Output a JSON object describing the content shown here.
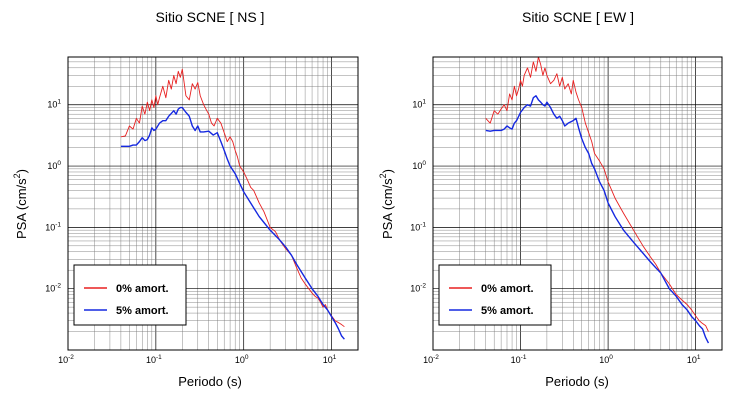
{
  "chart_data": [
    {
      "type": "line",
      "title": "Sitio SCNE [ NS ]",
      "xlabel": "Periodo (s)",
      "ylabel_main": "PSA (cm/s",
      "ylabel_sup": "2",
      "ylabel_end": ")",
      "xscale": "log",
      "yscale": "log",
      "xlim": [
        0.01,
        20
      ],
      "ylim": [
        0.001,
        60
      ],
      "grid": true,
      "legend_position": "bottom-left",
      "x_ticks": [
        {
          "base": "10",
          "exp": "-2",
          "value": 0.01
        },
        {
          "base": "10",
          "exp": "-1",
          "value": 0.1
        },
        {
          "base": "10",
          "exp": "0",
          "value": 1
        },
        {
          "base": "10",
          "exp": "1",
          "value": 10
        }
      ],
      "y_ticks": [
        {
          "base": "10",
          "exp": "1",
          "value": 10
        },
        {
          "base": "10",
          "exp": "0",
          "value": 1
        },
        {
          "base": "10",
          "exp": "-1",
          "value": 0.1
        },
        {
          "base": "10",
          "exp": "-2",
          "value": 0.01
        }
      ],
      "series": [
        {
          "name": "0% amort.",
          "color": "#e82020",
          "x": [
            0.04,
            0.045,
            0.05,
            0.055,
            0.06,
            0.065,
            0.07,
            0.075,
            0.08,
            0.085,
            0.09,
            0.095,
            0.1,
            0.105,
            0.11,
            0.12,
            0.13,
            0.14,
            0.15,
            0.16,
            0.17,
            0.18,
            0.19,
            0.2,
            0.22,
            0.24,
            0.26,
            0.28,
            0.3,
            0.32,
            0.35,
            0.38,
            0.4,
            0.43,
            0.46,
            0.5,
            0.55,
            0.6,
            0.65,
            0.7,
            0.75,
            0.8,
            0.85,
            0.9,
            1.0,
            1.1,
            1.2,
            1.3,
            1.5,
            1.7,
            2.0,
            2.3,
            2.6,
            3.0,
            3.5,
            4.0,
            4.5,
            5.0,
            5.5,
            6.0,
            6.5,
            7.0,
            7.5,
            8.0,
            8.5,
            9.0,
            10.0,
            11.0,
            12.0,
            13.0,
            14.0
          ],
          "y": [
            3.0,
            3.1,
            4.5,
            4.0,
            6.0,
            5.0,
            9.5,
            7.0,
            11.0,
            8.0,
            12.0,
            9.0,
            14.0,
            10.0,
            13.0,
            20.0,
            13.0,
            25.0,
            18.0,
            30.0,
            22.0,
            35.0,
            28.0,
            38.0,
            14.0,
            12.0,
            22.0,
            18.0,
            23.0,
            14.0,
            10.0,
            8.0,
            7.0,
            5.0,
            4.5,
            6.0,
            5.0,
            3.5,
            2.5,
            3.0,
            2.5,
            1.8,
            1.4,
            1.0,
            0.8,
            0.6,
            0.45,
            0.4,
            0.25,
            0.18,
            0.1,
            0.085,
            0.06,
            0.045,
            0.035,
            0.022,
            0.015,
            0.012,
            0.01,
            0.0085,
            0.0075,
            0.007,
            0.006,
            0.005,
            0.0055,
            0.0045,
            0.0036,
            0.003,
            0.0028,
            0.0026,
            0.0024
          ]
        },
        {
          "name": "5% amort.",
          "color": "#1528e0",
          "x": [
            0.04,
            0.045,
            0.05,
            0.055,
            0.06,
            0.065,
            0.07,
            0.075,
            0.08,
            0.085,
            0.09,
            0.095,
            0.1,
            0.11,
            0.12,
            0.13,
            0.14,
            0.15,
            0.16,
            0.17,
            0.18,
            0.19,
            0.2,
            0.22,
            0.24,
            0.26,
            0.28,
            0.3,
            0.32,
            0.35,
            0.4,
            0.45,
            0.5,
            0.55,
            0.6,
            0.65,
            0.7,
            0.8,
            0.9,
            1.0,
            1.2,
            1.5,
            1.7,
            2.0,
            2.5,
            3.0,
            3.5,
            4.0,
            5.0,
            6.0,
            7.0,
            8.0,
            9.0,
            10.0,
            11.0,
            12.0,
            13.0,
            14.0
          ],
          "y": [
            2.1,
            2.1,
            2.1,
            2.2,
            2.2,
            2.5,
            2.9,
            2.6,
            2.7,
            3.2,
            4.2,
            3.8,
            4.0,
            5.0,
            5.5,
            5.5,
            6.5,
            7.2,
            8.0,
            7.0,
            8.5,
            9.0,
            9.0,
            7.5,
            6.5,
            4.5,
            3.8,
            4.5,
            3.6,
            3.6,
            3.7,
            3.2,
            3.5,
            2.5,
            1.8,
            1.3,
            1.0,
            0.75,
            0.52,
            0.38,
            0.25,
            0.15,
            0.12,
            0.09,
            0.065,
            0.048,
            0.035,
            0.025,
            0.015,
            0.01,
            0.0075,
            0.0055,
            0.0045,
            0.0035,
            0.0028,
            0.0022,
            0.0017,
            0.0015
          ]
        }
      ]
    },
    {
      "type": "line",
      "title": "Sitio SCNE [ EW ]",
      "xlabel": "Periodo (s)",
      "ylabel_main": "PSA (cm/s",
      "ylabel_sup": "2",
      "ylabel_end": ")",
      "xscale": "log",
      "yscale": "log",
      "xlim": [
        0.01,
        20
      ],
      "ylim": [
        0.001,
        60
      ],
      "grid": true,
      "legend_position": "bottom-left",
      "x_ticks": [
        {
          "base": "10",
          "exp": "-2",
          "value": 0.01
        },
        {
          "base": "10",
          "exp": "-1",
          "value": 0.1
        },
        {
          "base": "10",
          "exp": "0",
          "value": 1
        },
        {
          "base": "10",
          "exp": "1",
          "value": 10
        }
      ],
      "y_ticks": [
        {
          "base": "10",
          "exp": "1",
          "value": 10
        },
        {
          "base": "10",
          "exp": "0",
          "value": 1
        },
        {
          "base": "10",
          "exp": "-1",
          "value": 0.1
        },
        {
          "base": "10",
          "exp": "-2",
          "value": 0.01
        }
      ],
      "series": [
        {
          "name": "0% amort.",
          "color": "#e82020",
          "x": [
            0.04,
            0.045,
            0.05,
            0.055,
            0.06,
            0.065,
            0.07,
            0.075,
            0.08,
            0.085,
            0.09,
            0.095,
            0.1,
            0.105,
            0.11,
            0.12,
            0.13,
            0.14,
            0.15,
            0.16,
            0.17,
            0.18,
            0.19,
            0.2,
            0.22,
            0.24,
            0.26,
            0.28,
            0.3,
            0.32,
            0.35,
            0.38,
            0.4,
            0.43,
            0.46,
            0.5,
            0.55,
            0.6,
            0.65,
            0.7,
            0.8,
            0.9,
            1.0,
            1.2,
            1.5,
            2.0,
            2.5,
            3.0,
            3.5,
            4.0,
            5.0,
            6.0,
            7.0,
            8.0,
            9.0,
            10.0,
            11.0,
            12.0,
            13.0,
            14.0
          ],
          "y": [
            6.0,
            5.0,
            8.0,
            7.0,
            8.5,
            10.0,
            8.0,
            15.0,
            12.0,
            20.0,
            14.0,
            18.0,
            25.0,
            20.0,
            30.0,
            40.0,
            28.0,
            50.0,
            35.0,
            60.0,
            45.0,
            30.0,
            40.0,
            30.0,
            22.0,
            25.0,
            32.0,
            20.0,
            28.0,
            18.0,
            22.0,
            15.0,
            25.0,
            16.0,
            12.0,
            9.0,
            5.0,
            3.5,
            2.5,
            1.6,
            1.2,
            0.9,
            0.55,
            0.3,
            0.17,
            0.085,
            0.05,
            0.034,
            0.025,
            0.018,
            0.012,
            0.008,
            0.0065,
            0.0055,
            0.0045,
            0.0036,
            0.003,
            0.0027,
            0.0025,
            0.002
          ]
        },
        {
          "name": "5% amort.",
          "color": "#1528e0",
          "x": [
            0.04,
            0.045,
            0.05,
            0.055,
            0.06,
            0.065,
            0.07,
            0.075,
            0.08,
            0.085,
            0.09,
            0.1,
            0.11,
            0.12,
            0.13,
            0.14,
            0.15,
            0.16,
            0.17,
            0.18,
            0.19,
            0.2,
            0.22,
            0.24,
            0.26,
            0.28,
            0.3,
            0.32,
            0.35,
            0.4,
            0.43,
            0.46,
            0.5,
            0.55,
            0.6,
            0.65,
            0.7,
            0.8,
            0.9,
            1.0,
            1.2,
            1.5,
            2.0,
            2.5,
            3.0,
            3.5,
            4.0,
            5.0,
            6.0,
            7.0,
            8.0,
            9.0,
            10.0,
            11.0,
            12.0,
            13.0,
            14.0
          ],
          "y": [
            3.8,
            3.7,
            3.8,
            3.8,
            3.8,
            4.0,
            4.5,
            4.2,
            4.0,
            5.0,
            5.5,
            7.5,
            9.0,
            10.0,
            9.5,
            13.0,
            14.0,
            12.0,
            11.0,
            10.0,
            9.5,
            11.0,
            9.0,
            7.0,
            6.0,
            6.5,
            5.5,
            4.5,
            5.0,
            5.5,
            6.0,
            4.2,
            2.8,
            2.0,
            1.6,
            1.1,
            0.9,
            0.55,
            0.4,
            0.25,
            0.15,
            0.09,
            0.055,
            0.038,
            0.028,
            0.022,
            0.018,
            0.01,
            0.0075,
            0.0055,
            0.0045,
            0.0035,
            0.003,
            0.0025,
            0.0022,
            0.0016,
            0.0013
          ]
        }
      ]
    }
  ]
}
